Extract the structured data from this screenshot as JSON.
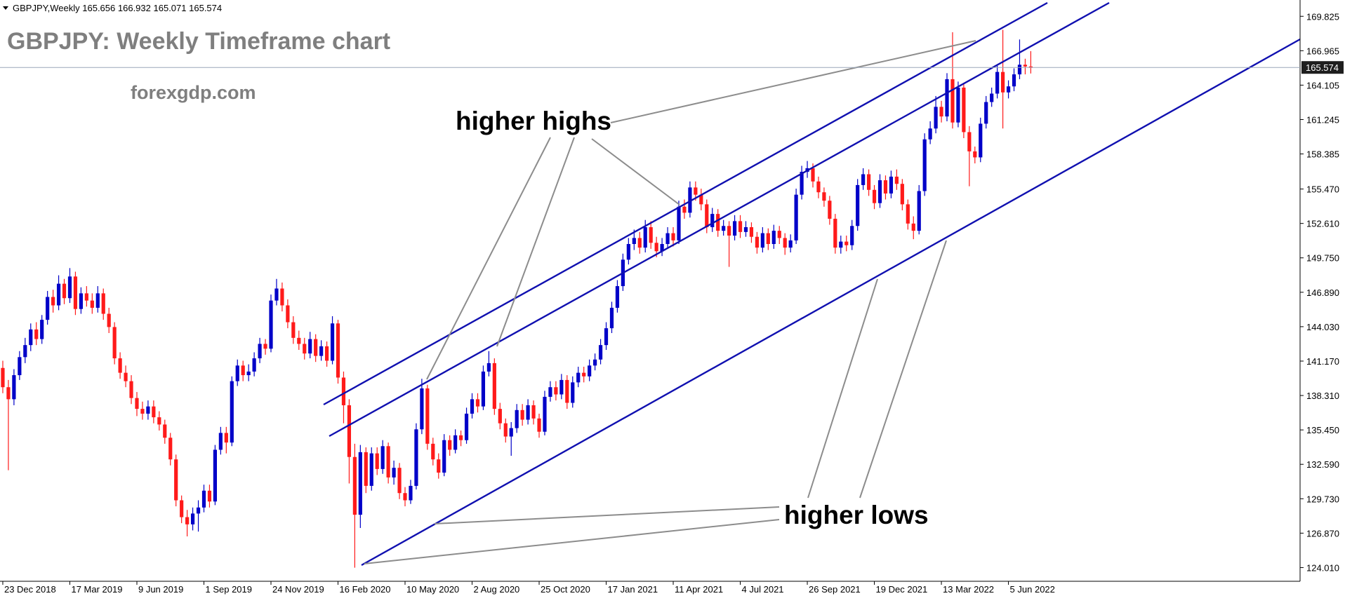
{
  "chart_data": {
    "type": "candlestick",
    "symbol": "GBPJPY,Weekly",
    "title": "GBPJPY: Weekly Timeframe chart",
    "subtitle": "forexgdp.com",
    "annotations": [
      "higher highs",
      "higher lows"
    ],
    "up_color": "#0000c8",
    "down_color": "#ff1a1a",
    "price_line": true,
    "xlim": [
      -0.5,
      232.2
    ],
    "xticks": [
      {
        "value": 0,
        "label": "23 Dec 2018"
      },
      {
        "value": 12,
        "label": "17 Mar 2019"
      },
      {
        "value": 24,
        "label": "9 Jun 2019"
      },
      {
        "value": 36,
        "label": "1 Sep 2019"
      },
      {
        "value": 48,
        "label": "24 Nov 2019"
      },
      {
        "value": 60,
        "label": "16 Feb 2020"
      },
      {
        "value": 72,
        "label": "10 May 2020"
      },
      {
        "value": 84,
        "label": "2 Aug 2020"
      },
      {
        "value": 96,
        "label": "25 Oct 2020"
      },
      {
        "value": 108,
        "label": "17 Jan 2021"
      },
      {
        "value": 120,
        "label": "11 Apr 2021"
      },
      {
        "value": 132,
        "label": "4 Jul 2021"
      },
      {
        "value": 144,
        "label": "26 Sep 2021"
      },
      {
        "value": 156,
        "label": "19 Dec 2021"
      },
      {
        "value": 168,
        "label": "13 Mar 2022"
      },
      {
        "value": 180,
        "label": "5 Jun 2022"
      }
    ],
    "ylim": [
      122.87,
      171.18
    ],
    "yticks": [
      {
        "value": 124.01,
        "label": "124.010"
      },
      {
        "value": 126.87,
        "label": "126.870"
      },
      {
        "value": 129.73,
        "label": "129.730"
      },
      {
        "value": 132.59,
        "label": "132.590"
      },
      {
        "value": 135.45,
        "label": "135.450"
      },
      {
        "value": 138.31,
        "label": "138.310"
      },
      {
        "value": 141.17,
        "label": "141.170"
      },
      {
        "value": 144.03,
        "label": "144.030"
      },
      {
        "value": 146.89,
        "label": "146.890"
      },
      {
        "value": 149.75,
        "label": "149.750"
      },
      {
        "value": 152.61,
        "label": "152.610"
      },
      {
        "value": 155.47,
        "label": "155.470"
      },
      158.385,
      161.245,
      164.105,
      166.965,
      169.825
    ],
    "open": [
      140.6,
      139.0,
      138.0,
      140.0,
      141.5,
      142.5,
      143.8,
      143.0,
      144.6,
      146.5,
      145.8,
      147.6,
      146.4,
      148.2,
      145.5,
      146.8,
      146.2,
      145.6,
      146.8,
      145.1,
      144.0,
      141.4,
      140.2,
      139.5,
      138.1,
      137.2,
      136.8,
      137.4,
      136.5,
      135.9,
      134.8,
      133.0,
      129.6,
      128.2,
      127.6,
      128.5,
      129.0,
      130.4,
      129.5,
      133.8,
      135.2,
      134.4,
      139.5,
      140.8,
      140.0,
      140.3,
      141.4,
      142.6,
      142.2,
      146.2,
      147.2,
      145.8,
      144.4,
      143.1,
      142.6,
      141.8,
      143.0,
      141.6,
      142.4,
      141.2,
      144.3,
      139.8,
      137.5,
      133.2,
      128.4,
      133.6,
      130.8,
      133.5,
      132.2,
      134.1,
      131.5,
      132.3,
      130.2,
      129.6,
      130.8,
      135.5,
      138.9,
      134.3,
      133.0,
      131.9,
      134.6,
      133.8,
      135.0,
      134.6,
      136.8,
      138.0,
      137.4,
      140.3,
      141.0,
      137.2,
      136.0,
      134.9,
      135.6,
      137.1,
      136.3,
      137.5,
      136.4,
      135.3,
      138.2,
      139.0,
      138.4,
      139.6,
      137.7,
      139.4,
      140.2,
      139.9,
      140.8,
      141.3,
      142.5,
      143.9,
      145.6,
      147.4,
      149.6,
      150.9,
      151.4,
      150.6,
      152.3,
      151.0,
      150.3,
      150.9,
      151.8,
      151.2,
      154.0,
      153.5,
      155.6,
      155.0,
      154.2,
      152.3,
      153.4,
      152.0,
      152.4,
      151.6,
      152.8,
      151.9,
      152.3,
      151.5,
      150.6,
      151.8,
      150.9,
      152.0,
      151.4,
      150.6,
      151.2,
      155.0,
      156.9,
      157.2,
      156.1,
      155.2,
      154.5,
      153.0,
      150.6,
      151.1,
      150.8,
      152.4,
      155.8,
      156.7,
      155.4,
      154.3,
      156.2,
      155.1,
      156.5,
      155.9,
      154.2,
      152.6,
      152.0,
      155.3,
      159.6,
      160.5,
      162.3,
      161.5,
      164.6,
      161.0,
      163.9,
      160.2,
      158.6,
      158.1,
      160.9,
      162.7,
      163.4,
      165.2,
      163.5,
      164.0,
      165.0,
      165.8,
      165.656
    ],
    "high": [
      141.2,
      139.6,
      140.5,
      142.0,
      143.1,
      144.3,
      144.4,
      145.0,
      147.0,
      147.1,
      148.3,
      148.0,
      148.9,
      148.6,
      147.3,
      147.4,
      146.8,
      147.4,
      147.2,
      145.6,
      144.4,
      141.9,
      140.8,
      140.0,
      138.6,
      137.8,
      137.9,
      137.9,
      137.0,
      136.3,
      135.2,
      133.4,
      130.0,
      128.8,
      129.0,
      129.6,
      130.9,
      130.9,
      134.2,
      135.7,
      135.7,
      139.9,
      141.3,
      141.2,
      140.9,
      141.9,
      143.1,
      143.0,
      146.7,
      148.0,
      147.7,
      146.3,
      144.9,
      143.7,
      143.1,
      143.6,
      143.4,
      142.9,
      142.8,
      144.9,
      144.6,
      140.3,
      138.0,
      134.3,
      134.2,
      134.0,
      134.0,
      134.0,
      134.6,
      134.4,
      132.9,
      132.7,
      130.7,
      131.3,
      136.0,
      139.7,
      139.2,
      134.8,
      133.5,
      135.1,
      135.0,
      135.5,
      135.4,
      137.3,
      138.5,
      138.5,
      140.8,
      142.0,
      141.4,
      137.7,
      136.4,
      136.1,
      137.6,
      137.6,
      138.0,
      137.9,
      136.8,
      138.7,
      139.5,
      139.5,
      140.1,
      140.0,
      139.9,
      140.7,
      140.7,
      141.3,
      141.8,
      143.0,
      144.4,
      146.1,
      147.9,
      150.1,
      151.4,
      152.1,
      151.9,
      152.9,
      152.8,
      151.5,
      151.4,
      152.3,
      152.3,
      154.5,
      154.6,
      156.1,
      156.1,
      155.5,
      154.6,
      153.9,
      153.8,
      152.9,
      152.8,
      153.3,
      153.3,
      152.8,
      152.7,
      151.9,
      152.3,
      152.2,
      152.5,
      152.4,
      151.8,
      151.7,
      155.5,
      157.4,
      157.8,
      157.6,
      156.5,
      155.6,
      154.9,
      153.4,
      151.6,
      151.6,
      152.9,
      156.3,
      157.2,
      157.1,
      155.8,
      156.7,
      156.6,
      157.0,
      157.1,
      156.3,
      154.6,
      153.2,
      155.8,
      160.1,
      161.1,
      163.2,
      162.8,
      165.1,
      168.5,
      164.4,
      164.3,
      160.7,
      159.0,
      161.4,
      163.2,
      163.9,
      165.7,
      168.7,
      164.5,
      165.5,
      167.9,
      166.3,
      166.932
    ],
    "low": [
      138.5,
      132.1,
      137.5,
      139.6,
      141.0,
      142.0,
      142.5,
      142.6,
      144.2,
      145.2,
      145.4,
      145.9,
      146.0,
      145.0,
      145.1,
      145.7,
      145.1,
      145.2,
      144.6,
      143.5,
      140.9,
      139.7,
      139.0,
      137.6,
      136.6,
      136.3,
      136.3,
      136.0,
      135.4,
      134.3,
      132.5,
      129.1,
      127.7,
      126.6,
      127.1,
      127.0,
      128.6,
      129.0,
      129.2,
      133.4,
      133.5,
      134.1,
      139.1,
      139.5,
      139.5,
      139.9,
      141.0,
      141.7,
      141.9,
      145.8,
      145.3,
      143.9,
      142.6,
      142.1,
      141.3,
      141.4,
      141.1,
      141.2,
      140.7,
      140.9,
      139.3,
      136.0,
      131.0,
      124.0,
      127.3,
      130.2,
      130.4,
      131.7,
      131.8,
      131.0,
      130.9,
      129.7,
      129.1,
      129.3,
      130.5,
      135.1,
      133.8,
      132.5,
      131.4,
      131.6,
      133.3,
      133.5,
      134.1,
      134.3,
      136.4,
      136.9,
      137.1,
      139.9,
      136.7,
      135.5,
      134.4,
      133.3,
      135.2,
      135.8,
      135.9,
      135.9,
      134.8,
      135.0,
      137.8,
      137.9,
      138.0,
      137.2,
      137.3,
      139.0,
      139.4,
      139.5,
      140.4,
      140.9,
      142.1,
      143.5,
      145.2,
      147.0,
      149.2,
      150.4,
      150.1,
      150.2,
      150.5,
      149.8,
      149.9,
      150.5,
      150.7,
      150.9,
      153.0,
      153.1,
      154.5,
      153.7,
      151.8,
      151.9,
      151.5,
      151.6,
      149.0,
      151.2,
      151.4,
      151.5,
      151.0,
      150.1,
      150.2,
      150.4,
      150.5,
      150.9,
      150.0,
      150.2,
      150.9,
      154.6,
      156.4,
      155.6,
      154.7,
      154.0,
      152.5,
      150.1,
      150.1,
      150.3,
      150.4,
      152.0,
      155.4,
      154.9,
      153.8,
      153.9,
      154.6,
      154.7,
      155.4,
      153.7,
      152.1,
      151.3,
      151.7,
      154.9,
      159.2,
      160.1,
      161.0,
      161.1,
      160.5,
      160.6,
      159.7,
      155.7,
      157.6,
      157.7,
      160.5,
      162.3,
      163.0,
      160.5,
      163.0,
      163.6,
      164.6,
      165.0,
      165.071
    ],
    "close": [
      139.0,
      138.0,
      140.0,
      141.5,
      142.5,
      143.8,
      143.0,
      144.6,
      146.5,
      145.8,
      147.6,
      146.4,
      148.2,
      145.5,
      146.8,
      146.2,
      145.6,
      146.8,
      145.1,
      144.0,
      141.4,
      140.2,
      139.5,
      138.1,
      137.2,
      136.8,
      137.4,
      136.5,
      135.9,
      134.8,
      133.0,
      129.6,
      128.2,
      127.6,
      128.5,
      129.0,
      130.4,
      129.5,
      133.8,
      135.2,
      134.4,
      139.5,
      140.8,
      140.0,
      140.3,
      141.4,
      142.6,
      142.2,
      146.2,
      147.2,
      145.8,
      144.4,
      143.1,
      142.6,
      141.8,
      143.0,
      141.6,
      142.4,
      141.2,
      144.3,
      139.8,
      137.5,
      133.2,
      128.4,
      133.6,
      130.8,
      133.5,
      132.2,
      134.1,
      131.5,
      132.3,
      130.2,
      129.6,
      130.8,
      135.5,
      138.9,
      134.3,
      133.0,
      131.9,
      134.6,
      133.8,
      135.0,
      134.6,
      136.8,
      138.0,
      137.4,
      140.3,
      141.0,
      137.2,
      136.0,
      134.9,
      135.6,
      137.1,
      136.3,
      137.5,
      136.4,
      135.3,
      138.2,
      139.0,
      138.4,
      139.6,
      137.7,
      139.4,
      140.2,
      139.9,
      140.8,
      141.3,
      142.5,
      143.9,
      145.6,
      147.4,
      149.6,
      150.9,
      151.4,
      150.6,
      152.3,
      151.0,
      150.3,
      150.9,
      151.8,
      151.2,
      154.0,
      153.5,
      155.6,
      155.0,
      154.2,
      152.3,
      153.4,
      152.0,
      152.4,
      151.6,
      152.8,
      151.9,
      152.3,
      151.5,
      150.6,
      151.8,
      150.9,
      152.0,
      151.4,
      150.6,
      151.2,
      155.0,
      156.9,
      157.2,
      156.1,
      155.2,
      154.5,
      153.0,
      150.6,
      151.1,
      150.8,
      152.4,
      155.8,
      156.7,
      155.4,
      154.3,
      156.2,
      155.1,
      156.5,
      155.9,
      154.2,
      152.6,
      152.0,
      155.3,
      159.6,
      160.5,
      162.3,
      161.5,
      164.6,
      161.0,
      163.9,
      160.2,
      158.6,
      158.1,
      160.9,
      162.7,
      163.4,
      165.2,
      163.5,
      164.0,
      165.0,
      165.8,
      165.656,
      165.574
    ]
  }
}
